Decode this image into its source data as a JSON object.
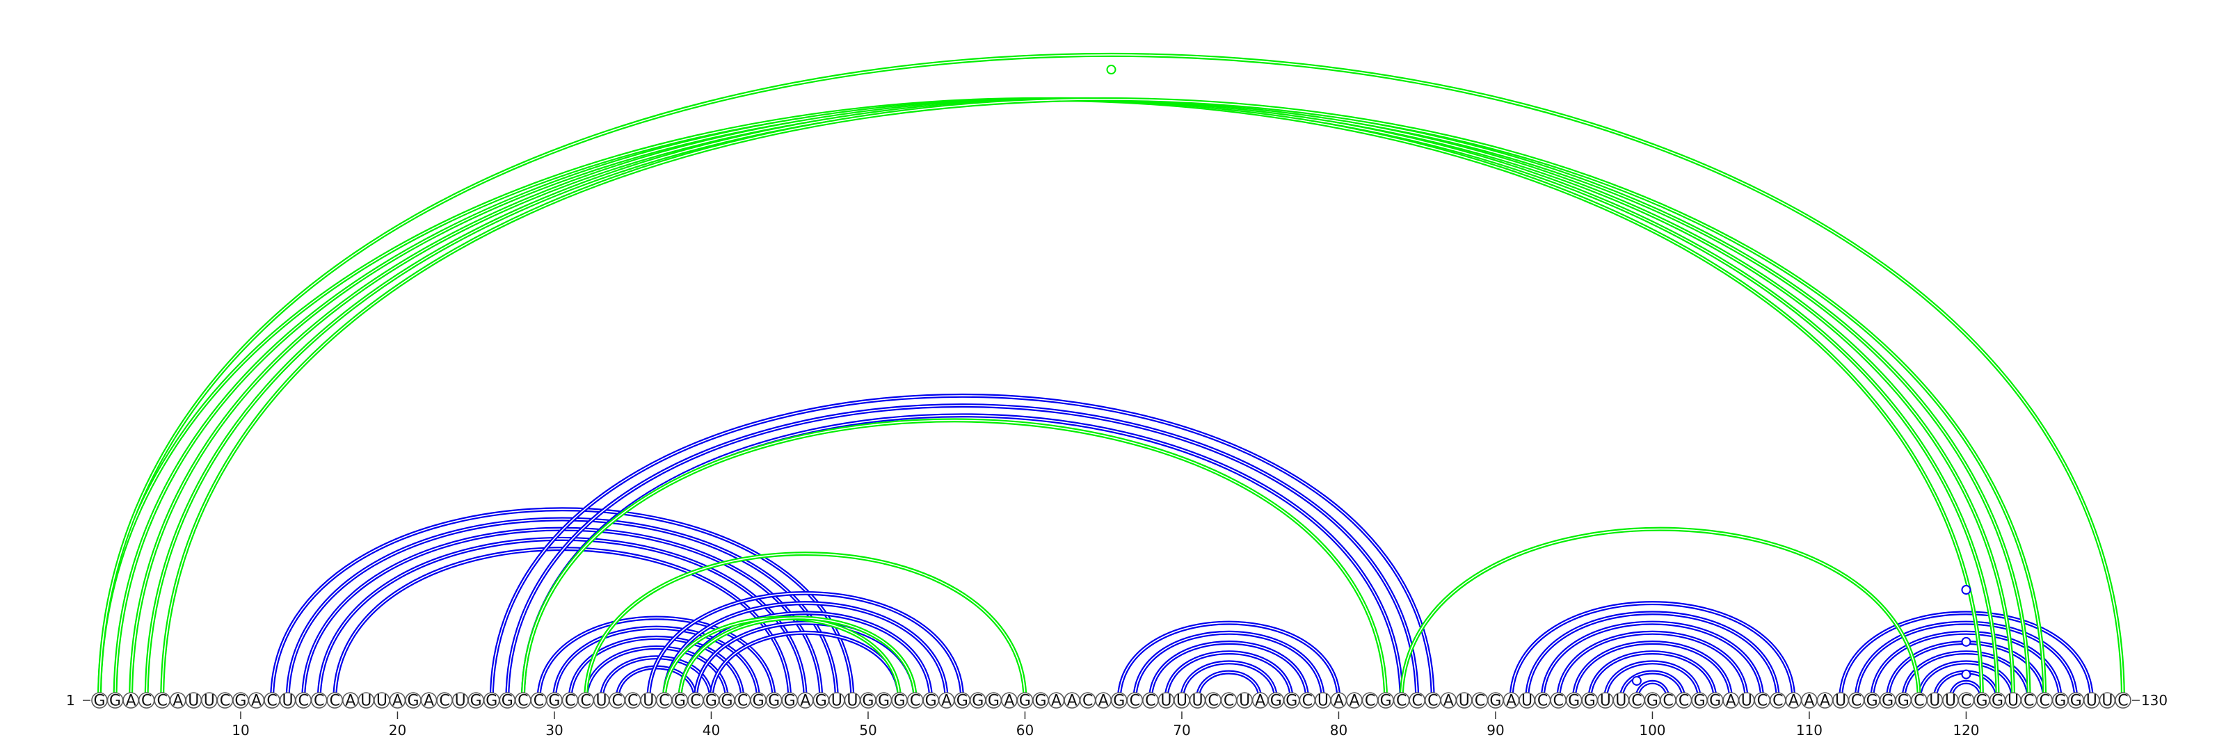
{
  "diagram": {
    "type": "arc-diagram",
    "sequence": "GGACCAUUCGACUCCCAUUAGACUGGGCCGCCUCCUCGCGGCGGGAGUUGGGCGAGGGAGGAACAGCCUUUCCUAGGCUAACGCCCAUCGAUCCGGUUCGCCGGAUCCAAAUCGGGCUUCGGUCCGGUUC",
    "start_label": "1",
    "end_label": "130",
    "tick_positions": [
      10,
      20,
      30,
      40,
      50,
      60,
      70,
      80,
      90,
      100,
      110,
      120
    ],
    "colors": {
      "blue": "#0000ee",
      "green": "#00ee00",
      "nucleotide_outline": "#5a5a5a"
    },
    "arc_groups": [
      {
        "color": "blue",
        "pairs": [
          [
            12,
            49
          ],
          [
            13,
            48
          ],
          [
            14,
            47
          ],
          [
            15,
            46
          ],
          [
            16,
            45
          ]
        ]
      },
      {
        "color": "blue",
        "pairs": [
          [
            26,
            86
          ],
          [
            27,
            85
          ],
          [
            28,
            84
          ]
        ]
      },
      {
        "color": "blue",
        "pairs": [
          [
            29,
            44
          ],
          [
            30,
            43
          ],
          [
            31,
            42
          ],
          [
            32,
            41
          ],
          [
            33,
            40
          ],
          [
            34,
            39
          ]
        ]
      },
      {
        "color": "blue",
        "pairs": [
          [
            36,
            56
          ],
          [
            37,
            55
          ],
          [
            38,
            54
          ],
          [
            39,
            53
          ],
          [
            40,
            52
          ]
        ]
      },
      {
        "color": "blue",
        "pairs": [
          [
            66,
            80
          ],
          [
            67,
            79
          ],
          [
            68,
            78
          ],
          [
            69,
            77
          ],
          [
            70,
            76
          ],
          [
            71,
            75
          ]
        ]
      },
      {
        "color": "blue",
        "pairs": [
          [
            91,
            109
          ],
          [
            92,
            108
          ],
          [
            93,
            107
          ],
          [
            94,
            106
          ],
          [
            95,
            105
          ],
          [
            96,
            104
          ],
          [
            97,
            103
          ],
          [
            98,
            102
          ],
          [
            99,
            101
          ]
        ]
      },
      {
        "color": "blue",
        "pairs": [
          [
            112,
            128
          ],
          [
            113,
            127
          ],
          [
            114,
            126
          ],
          [
            115,
            125
          ],
          [
            116,
            124
          ],
          [
            117,
            123
          ],
          [
            118,
            122
          ],
          [
            119,
            121
          ]
        ]
      },
      {
        "color": "green",
        "pairs": [
          [
            1,
            121
          ],
          [
            2,
            122
          ],
          [
            3,
            123
          ],
          [
            4,
            124
          ],
          [
            5,
            125
          ],
          [
            1,
            130
          ]
        ]
      },
      {
        "color": "green",
        "pairs": [
          [
            28,
            83
          ],
          [
            32,
            60
          ],
          [
            37,
            52
          ],
          [
            38,
            53
          ],
          [
            84,
            117
          ]
        ]
      }
    ],
    "markers": [
      {
        "color": "green",
        "position": 65.5,
        "level": 0.97
      },
      {
        "color": "blue",
        "position": 120,
        "level": 0.17
      },
      {
        "color": "blue",
        "position": 120,
        "level": 0.09
      },
      {
        "color": "blue",
        "position": 120,
        "level": 0.04
      },
      {
        "color": "blue",
        "position": 99,
        "level": 0.03
      }
    ]
  }
}
